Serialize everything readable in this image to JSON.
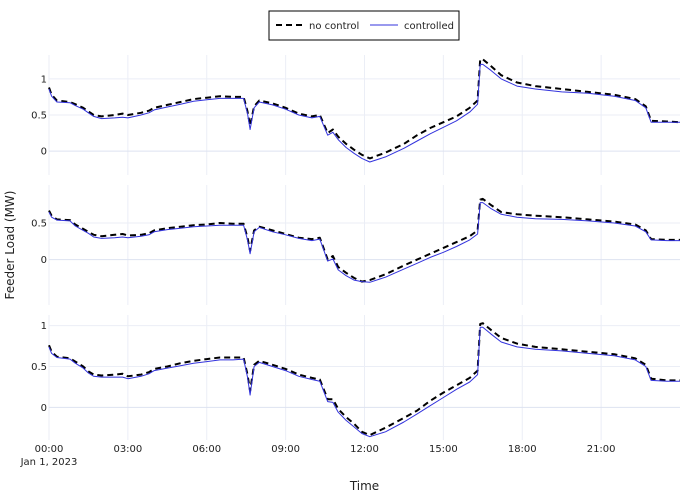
{
  "chart_data": {
    "type": "line",
    "title": "",
    "xlabel": "Time",
    "ylabel": "Feeder Load (MW)",
    "x_tick_labels": [
      "00:00",
      "03:00",
      "06:00",
      "09:00",
      "12:00",
      "15:00",
      "18:00",
      "21:00"
    ],
    "x_tick_hours": [
      0,
      3,
      6,
      9,
      12,
      15,
      18,
      21
    ],
    "x_date_label": "Jan 1, 2023",
    "x_range_hours": [
      0,
      24
    ],
    "grid": true,
    "legend": {
      "placement": "top-center",
      "entries": [
        {
          "name": "no control",
          "style": "dashed",
          "color": "#000000"
        },
        {
          "name": "controlled",
          "style": "solid",
          "color": "#3333dd"
        }
      ]
    },
    "x_hours": [
      0,
      0.1,
      0.3,
      0.8,
      1.0,
      1.3,
      1.5,
      1.7,
      2.0,
      2.5,
      2.8,
      3.0,
      3.5,
      3.8,
      4.0,
      4.5,
      5.0,
      5.5,
      6.0,
      6.5,
      7.0,
      7.4,
      7.55,
      7.65,
      7.8,
      8.0,
      8.5,
      9.0,
      9.5,
      10.0,
      10.3,
      10.6,
      10.8,
      11.0,
      11.3,
      11.6,
      11.9,
      12.2,
      12.8,
      13.5,
      14.0,
      14.5,
      15.0,
      15.5,
      16.0,
      16.3,
      16.4,
      16.5,
      16.8,
      17.2,
      17.8,
      18.5,
      19.5,
      20.5,
      21.5,
      22.3,
      22.7,
      22.9,
      23.5,
      24.0
    ],
    "panels": [
      {
        "yticks": [
          0,
          0.5,
          1
        ],
        "ylim": [
          -0.33,
          1.33
        ],
        "series": [
          {
            "name": "no control",
            "values": [
              0.88,
              0.78,
              0.7,
              0.68,
              0.65,
              0.6,
              0.55,
              0.5,
              0.48,
              0.5,
              0.52,
              0.5,
              0.53,
              0.56,
              0.6,
              0.64,
              0.68,
              0.72,
              0.74,
              0.76,
              0.75,
              0.75,
              0.55,
              0.35,
              0.62,
              0.7,
              0.66,
              0.6,
              0.52,
              0.48,
              0.5,
              0.25,
              0.3,
              0.2,
              0.1,
              0.02,
              -0.05,
              -0.1,
              -0.02,
              0.1,
              0.22,
              0.32,
              0.4,
              0.48,
              0.6,
              0.7,
              1.27,
              1.27,
              1.18,
              1.05,
              0.95,
              0.9,
              0.86,
              0.82,
              0.78,
              0.72,
              0.62,
              0.42,
              0.41,
              0.4
            ]
          },
          {
            "name": "controlled",
            "values": [
              0.86,
              0.76,
              0.68,
              0.67,
              0.63,
              0.58,
              0.53,
              0.48,
              0.45,
              0.46,
              0.47,
              0.46,
              0.5,
              0.53,
              0.57,
              0.61,
              0.65,
              0.69,
              0.71,
              0.73,
              0.73,
              0.73,
              0.52,
              0.3,
              0.6,
              0.68,
              0.64,
              0.58,
              0.5,
              0.46,
              0.48,
              0.22,
              0.26,
              0.16,
              0.05,
              -0.03,
              -0.1,
              -0.15,
              -0.08,
              0.04,
              0.14,
              0.24,
              0.33,
              0.42,
              0.54,
              0.65,
              1.2,
              1.2,
              1.12,
              1.0,
              0.9,
              0.86,
              0.82,
              0.8,
              0.76,
              0.7,
              0.6,
              0.4,
              0.4,
              0.4
            ]
          }
        ]
      },
      {
        "yticks": [
          0,
          0.5
        ],
        "ylim": [
          -0.62,
          1.02
        ],
        "series": [
          {
            "name": "no control",
            "values": [
              0.67,
              0.6,
              0.55,
              0.54,
              0.48,
              0.42,
              0.38,
              0.34,
              0.32,
              0.34,
              0.35,
              0.33,
              0.34,
              0.36,
              0.4,
              0.43,
              0.45,
              0.47,
              0.48,
              0.5,
              0.49,
              0.49,
              0.3,
              0.12,
              0.4,
              0.45,
              0.4,
              0.35,
              0.3,
              0.28,
              0.3,
              0.0,
              0.05,
              -0.1,
              -0.18,
              -0.25,
              -0.3,
              -0.28,
              -0.2,
              -0.08,
              0.0,
              0.08,
              0.16,
              0.24,
              0.32,
              0.4,
              0.82,
              0.83,
              0.75,
              0.65,
              0.62,
              0.6,
              0.58,
              0.55,
              0.52,
              0.48,
              0.4,
              0.28,
              0.27,
              0.27
            ]
          },
          {
            "name": "controlled",
            "values": [
              0.65,
              0.58,
              0.54,
              0.53,
              0.46,
              0.4,
              0.36,
              0.31,
              0.29,
              0.3,
              0.31,
              0.3,
              0.32,
              0.34,
              0.38,
              0.41,
              0.43,
              0.45,
              0.46,
              0.47,
              0.47,
              0.47,
              0.27,
              0.08,
              0.38,
              0.44,
              0.38,
              0.34,
              0.29,
              0.26,
              0.28,
              -0.02,
              0.01,
              -0.14,
              -0.22,
              -0.28,
              -0.3,
              -0.31,
              -0.24,
              -0.13,
              -0.05,
              0.03,
              0.1,
              0.18,
              0.27,
              0.35,
              0.78,
              0.78,
              0.7,
              0.62,
              0.58,
              0.56,
              0.55,
              0.53,
              0.5,
              0.46,
              0.38,
              0.27,
              0.26,
              0.26
            ]
          }
        ]
      },
      {
        "yticks": [
          0,
          0.5,
          1
        ],
        "ylim": [
          -0.4,
          1.13
        ],
        "series": [
          {
            "name": "no control",
            "values": [
              0.76,
              0.68,
              0.62,
              0.6,
              0.56,
              0.5,
              0.44,
              0.4,
              0.39,
              0.4,
              0.41,
              0.38,
              0.4,
              0.43,
              0.47,
              0.5,
              0.54,
              0.57,
              0.59,
              0.61,
              0.61,
              0.61,
              0.4,
              0.2,
              0.52,
              0.57,
              0.52,
              0.47,
              0.4,
              0.36,
              0.34,
              0.1,
              0.1,
              -0.02,
              -0.12,
              -0.2,
              -0.3,
              -0.34,
              -0.25,
              -0.13,
              -0.04,
              0.08,
              0.18,
              0.27,
              0.36,
              0.45,
              1.02,
              1.03,
              0.95,
              0.85,
              0.78,
              0.74,
              0.71,
              0.68,
              0.65,
              0.6,
              0.52,
              0.35,
              0.33,
              0.33
            ]
          },
          {
            "name": "controlled",
            "values": [
              0.74,
              0.66,
              0.61,
              0.59,
              0.54,
              0.48,
              0.42,
              0.38,
              0.37,
              0.37,
              0.37,
              0.35,
              0.38,
              0.41,
              0.45,
              0.48,
              0.51,
              0.54,
              0.56,
              0.58,
              0.58,
              0.59,
              0.37,
              0.15,
              0.5,
              0.55,
              0.5,
              0.45,
              0.38,
              0.34,
              0.32,
              0.07,
              0.06,
              -0.06,
              -0.16,
              -0.24,
              -0.32,
              -0.36,
              -0.3,
              -0.18,
              -0.08,
              0.02,
              0.12,
              0.22,
              0.31,
              0.4,
              0.98,
              0.98,
              0.9,
              0.8,
              0.74,
              0.71,
              0.69,
              0.66,
              0.63,
              0.58,
              0.5,
              0.33,
              0.32,
              0.32
            ]
          }
        ]
      }
    ]
  }
}
